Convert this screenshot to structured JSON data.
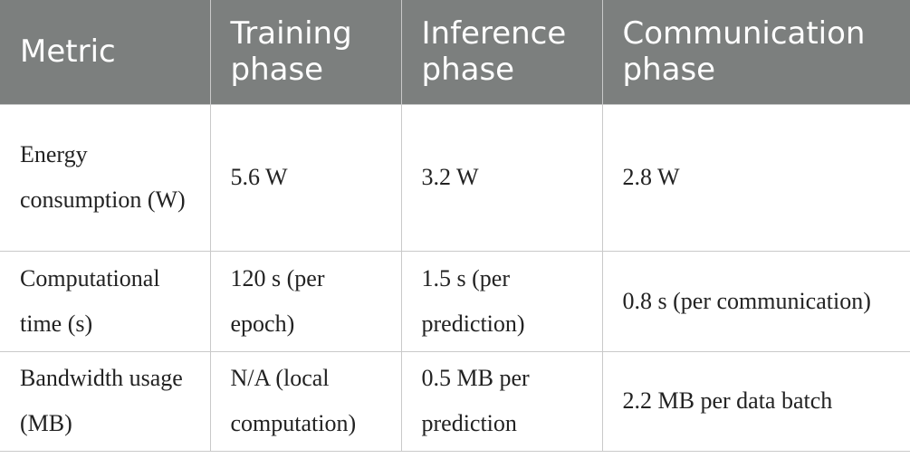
{
  "table": {
    "header": [
      "Metric",
      "Training phase",
      "Inference phase",
      "Communication phase"
    ],
    "rows": [
      [
        "Energy consumption (W)",
        "5.6 W",
        "3.2 W",
        "2.8 W"
      ],
      [
        "Computational time (s)",
        "120 s (per epoch)",
        "1.5 s (per prediction)",
        "0.8 s (per communication)"
      ],
      [
        "Bandwidth usage (MB)",
        "N/A (local computation)",
        "0.5 MB per prediction",
        "2.2 MB per data batch"
      ]
    ]
  }
}
